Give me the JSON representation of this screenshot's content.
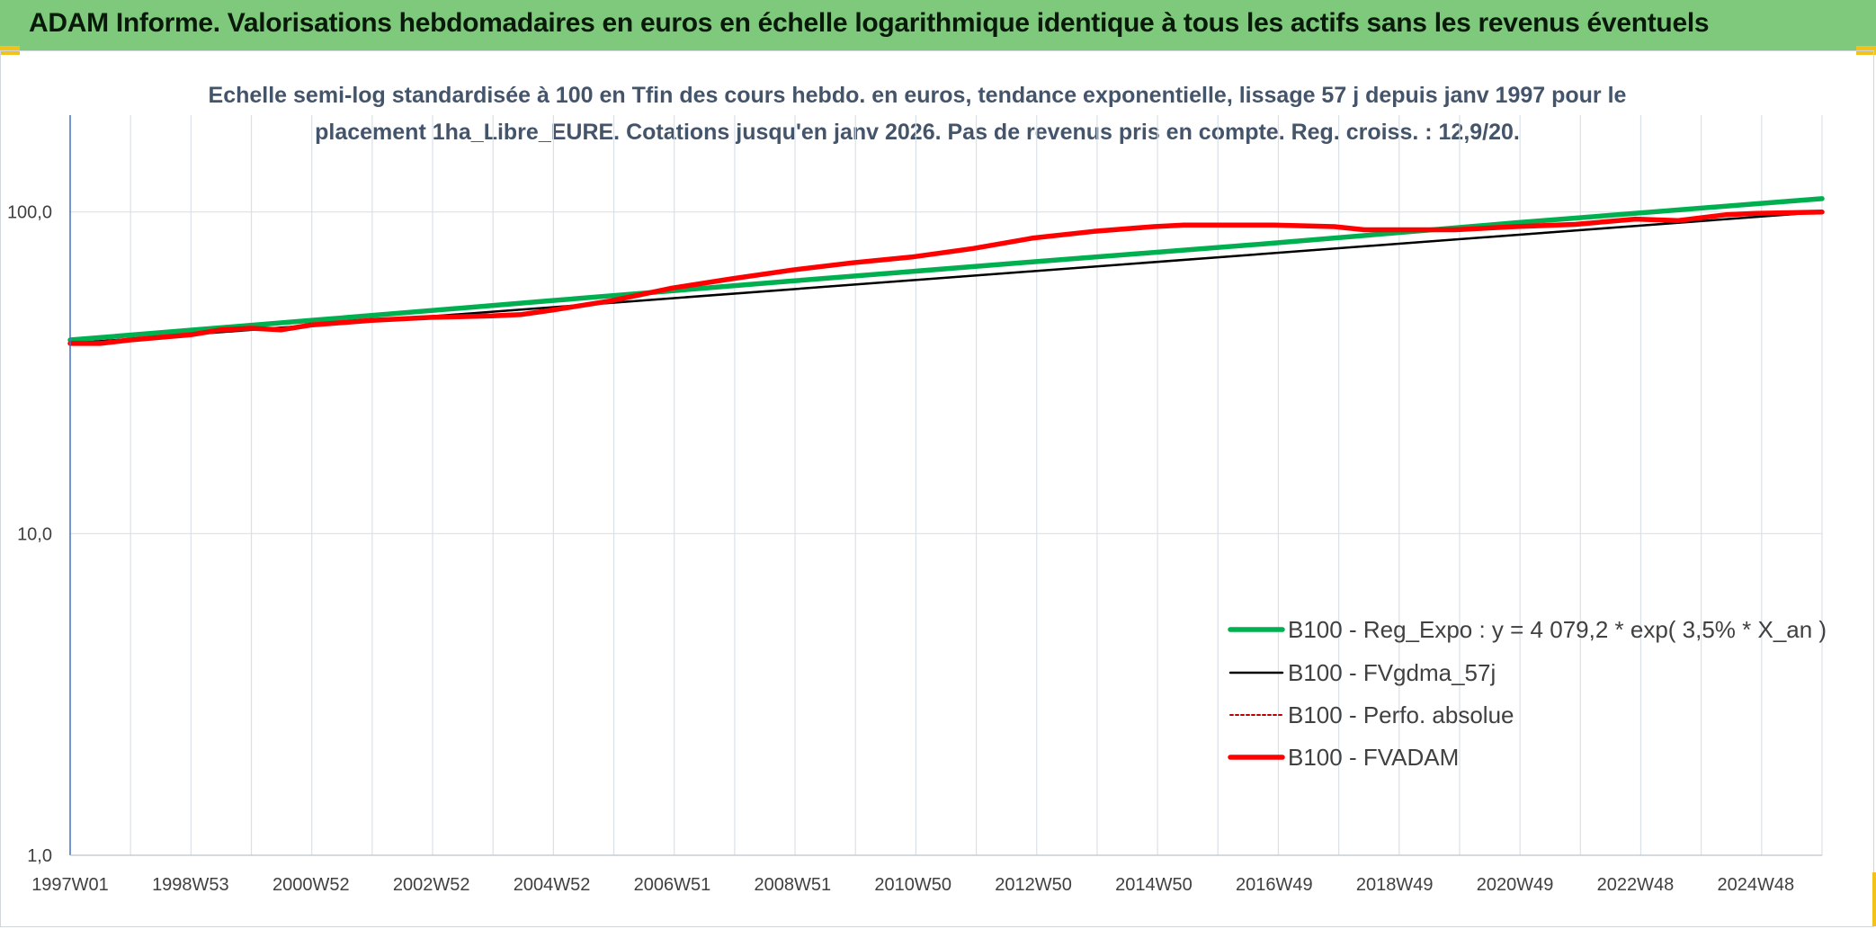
{
  "header": {
    "title": "ADAM Informe. Valorisations hebdomadaires en euros en échelle logarithmique identique à tous les actifs sans les revenus éventuels"
  },
  "colors": {
    "banner_bg": "#7ec97b",
    "accent_yellow": "#f2c21b",
    "subtitle_text": "#44546a",
    "grid": "#d9e1e8",
    "axis": "#4472c4",
    "reg_expo": "#00b050",
    "fvgdma": "#000000",
    "perfo_absolue": "#c00000",
    "fvadam": "#ff0000"
  },
  "chart_data": {
    "type": "line",
    "title": "Echelle semi-log standardisée à 100 en Tfin des cours hebdo. en euros, tendance exponentielle, lissage 57 j depuis janv 1997 pour le placement 1ha_Libre_EURE. Cotations jusqu'en janv 2026. Pas de revenus pris en compte. Reg. croiss. : 12,9/20.",
    "title_lines": [
      "Echelle semi-log standardisée à 100 en Tfin des cours hebdo. en euros, tendance exponentielle, lissage 57 j depuis janv 1997 pour le",
      "placement 1ha_Libre_EURE. Cotations jusqu'en janv 2026. Pas de revenus pris en compte. Reg. croiss. : 12,9/20."
    ],
    "y_scale": "log",
    "ylim": [
      1,
      200
    ],
    "xlim": [
      1997.0,
      2026.1
    ],
    "y_ticks": [
      {
        "value": 1,
        "label": "1,0"
      },
      {
        "value": 10,
        "label": "10,0"
      },
      {
        "value": 100,
        "label": "100,0"
      }
    ],
    "x_ticks": [
      {
        "value": 1997.0,
        "label": "1997W01"
      },
      {
        "value": 1999.0,
        "label": "1998W53"
      },
      {
        "value": 2001.0,
        "label": "2000W52"
      },
      {
        "value": 2003.0,
        "label": "2002W52"
      },
      {
        "value": 2005.0,
        "label": "2004W52"
      },
      {
        "value": 2007.0,
        "label": "2006W51"
      },
      {
        "value": 2009.0,
        "label": "2008W51"
      },
      {
        "value": 2011.0,
        "label": "2010W50"
      },
      {
        "value": 2013.0,
        "label": "2012W50"
      },
      {
        "value": 2015.0,
        "label": "2014W50"
      },
      {
        "value": 2017.0,
        "label": "2016W49"
      },
      {
        "value": 2019.0,
        "label": "2018W49"
      },
      {
        "value": 2021.0,
        "label": "2020W49"
      },
      {
        "value": 2023.0,
        "label": "2022W48"
      },
      {
        "value": 2025.0,
        "label": "2024W48"
      }
    ],
    "legend_position": "center-right",
    "series": [
      {
        "name": "B100 - Reg_Expo : y = 4 079,2 * exp( 3,5% *  X_an )",
        "key": "reg_expo",
        "style": "solid-thick",
        "x": [
          1997.0,
          2001.0,
          2005.0,
          2009.0,
          2013.0,
          2017.0,
          2021.0,
          2025.0,
          2026.1
        ],
        "y": [
          40.0,
          46.0,
          53.0,
          61.0,
          70.0,
          80.0,
          92.5,
          106.0,
          110.0
        ]
      },
      {
        "name": "B100 - FVgdma_57j",
        "key": "fvgdma",
        "style": "solid-thin",
        "x": [
          1997.0,
          2026.1
        ],
        "y": [
          39.0,
          100.0
        ]
      },
      {
        "name": "B100 - Perfo. absolue",
        "key": "perfo_absolue",
        "style": "dotted",
        "x": [
          1997.0,
          2026.1
        ],
        "y": [
          39.0,
          100.0
        ]
      },
      {
        "name": "B100 - FVADAM",
        "key": "fvadam",
        "style": "solid-thick",
        "x": [
          1997.0,
          1997.5,
          1998.0,
          1999.0,
          1999.5,
          2000.0,
          2000.5,
          2001.0,
          2002.0,
          2003.0,
          2004.0,
          2004.5,
          2005.0,
          2006.0,
          2007.0,
          2008.0,
          2009.0,
          2010.0,
          2011.0,
          2012.0,
          2013.0,
          2014.0,
          2015.0,
          2015.5,
          2016.0,
          2017.0,
          2018.0,
          2018.5,
          2019.0,
          2020.0,
          2021.0,
          2022.0,
          2023.0,
          2023.7,
          2024.5,
          2025.0,
          2026.1
        ],
        "y": [
          39.0,
          39.0,
          40.0,
          41.5,
          43.0,
          43.5,
          43.0,
          44.5,
          46.0,
          47.0,
          47.5,
          48.0,
          49.5,
          53.0,
          58.0,
          62.0,
          66.0,
          69.5,
          72.5,
          77.0,
          83.0,
          87.0,
          90.0,
          91.0,
          91.0,
          91.0,
          90.0,
          88.0,
          88.0,
          88.0,
          90.0,
          91.5,
          95.0,
          94.0,
          98.0,
          99.0,
          100.0
        ]
      }
    ]
  }
}
